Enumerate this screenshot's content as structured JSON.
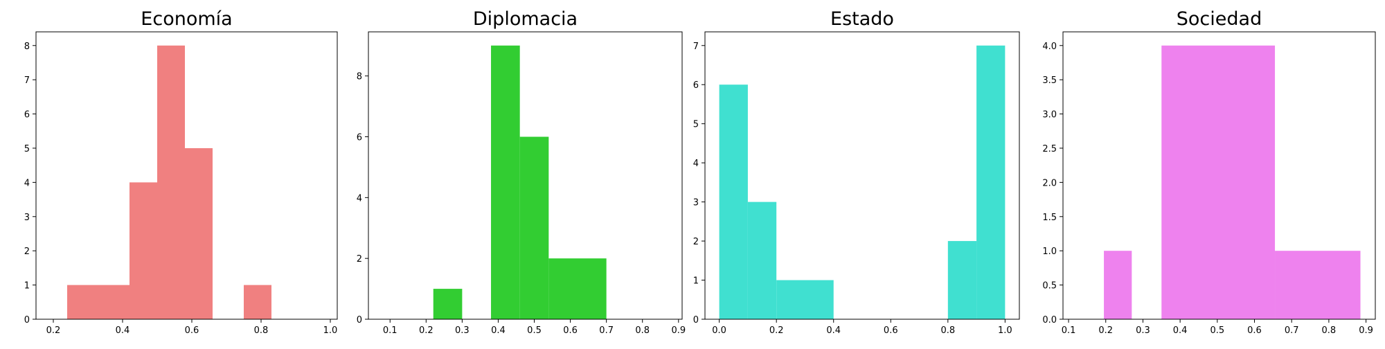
{
  "chart_data": [
    {
      "type": "bar",
      "title": "Economía",
      "color": "#f08080",
      "bins": [
        [
          0.24,
          0.42
        ],
        [
          0.42,
          0.5
        ],
        [
          0.5,
          0.58
        ],
        [
          0.58,
          0.66
        ],
        [
          0.75,
          0.83
        ]
      ],
      "values": [
        1,
        4,
        8,
        5,
        1
      ],
      "xlim": [
        0.15,
        1.02
      ],
      "ylim": [
        0,
        8.4
      ],
      "xticks": [
        0.2,
        0.4,
        0.6,
        0.8,
        1.0
      ],
      "xtick_labels": [
        "0.2",
        "0.4",
        "0.6",
        "0.8",
        "1.0"
      ],
      "yticks": [
        0,
        1,
        2,
        3,
        4,
        5,
        6,
        7,
        8
      ],
      "ytick_labels": [
        "0",
        "1",
        "2",
        "3",
        "4",
        "5",
        "6",
        "7",
        "8"
      ],
      "grid": false
    },
    {
      "type": "bar",
      "title": "Diplomacia",
      "color": "#32cd32",
      "bins": [
        [
          0.22,
          0.3
        ],
        [
          0.38,
          0.46
        ],
        [
          0.46,
          0.54
        ],
        [
          0.54,
          0.7
        ]
      ],
      "values": [
        1,
        9,
        6,
        2
      ],
      "xlim": [
        0.04,
        0.91
      ],
      "ylim": [
        0,
        9.45
      ],
      "xticks": [
        0.1,
        0.2,
        0.3,
        0.4,
        0.5,
        0.6,
        0.7,
        0.8,
        0.9
      ],
      "xtick_labels": [
        "0.1",
        "0.2",
        "0.3",
        "0.4",
        "0.5",
        "0.6",
        "0.7",
        "0.8",
        "0.9"
      ],
      "yticks": [
        0,
        2,
        4,
        6,
        8
      ],
      "ytick_labels": [
        "0",
        "2",
        "4",
        "6",
        "8"
      ],
      "grid": false
    },
    {
      "type": "bar",
      "title": "Estado",
      "color": "#40e0d0",
      "bins": [
        [
          0.0,
          0.1
        ],
        [
          0.1,
          0.2
        ],
        [
          0.2,
          0.4
        ],
        [
          0.8,
          0.9
        ],
        [
          0.9,
          1.0
        ]
      ],
      "values": [
        6,
        3,
        1,
        2,
        7
      ],
      "xlim": [
        -0.05,
        1.05
      ],
      "ylim": [
        0,
        7.35
      ],
      "xticks": [
        0.0,
        0.2,
        0.4,
        0.6,
        0.8,
        1.0
      ],
      "xtick_labels": [
        "0.0",
        "0.2",
        "0.4",
        "0.6",
        "0.8",
        "1.0"
      ],
      "yticks": [
        0,
        1,
        2,
        3,
        4,
        5,
        6,
        7
      ],
      "ytick_labels": [
        "0",
        "1",
        "2",
        "3",
        "4",
        "5",
        "6",
        "7"
      ],
      "grid": false
    },
    {
      "type": "bar",
      "title": "Sociedad",
      "color": "#ee82ee",
      "bins": [
        [
          0.195,
          0.27
        ],
        [
          0.35,
          0.655
        ],
        [
          0.655,
          0.885
        ]
      ],
      "values": [
        1,
        4,
        1
      ],
      "xlim": [
        0.085,
        0.925
      ],
      "ylim": [
        0,
        4.2
      ],
      "xticks": [
        0.1,
        0.2,
        0.3,
        0.4,
        0.5,
        0.6,
        0.7,
        0.8,
        0.9
      ],
      "xtick_labels": [
        "0.1",
        "0.2",
        "0.3",
        "0.4",
        "0.5",
        "0.6",
        "0.7",
        "0.8",
        "0.9"
      ],
      "yticks": [
        0,
        0.5,
        1,
        1.5,
        2,
        2.5,
        3,
        3.5,
        4
      ],
      "ytick_labels": [
        "0.0",
        "0.5",
        "1.0",
        "1.5",
        "2.0",
        "2.5",
        "3.0",
        "3.5",
        "4.0"
      ],
      "grid": false
    }
  ]
}
